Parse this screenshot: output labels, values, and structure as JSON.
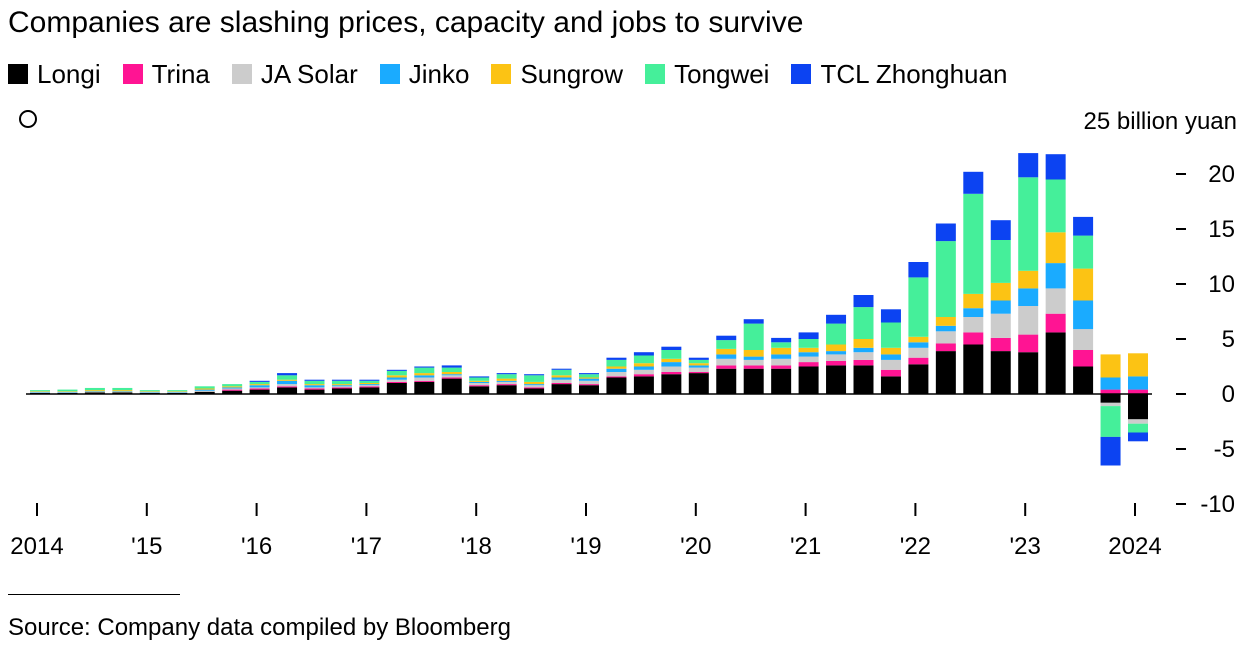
{
  "title": "Companies are slashing prices, capacity and jobs to survive",
  "legend": [
    {
      "name": "Longi",
      "color": "#000000"
    },
    {
      "name": "Trina",
      "color": "#ff1493"
    },
    {
      "name": "JA Solar",
      "color": "#cccccc"
    },
    {
      "name": "Jinko",
      "color": "#1aabff"
    },
    {
      "name": "Sungrow",
      "color": "#fcc314"
    },
    {
      "name": "Tongwei",
      "color": "#45ef9a"
    },
    {
      "name": "TCL Zhonghuan",
      "color": "#0c43f2"
    }
  ],
  "source": "Source: Company data compiled by Bloomberg",
  "chart_data": {
    "type": "bar",
    "stacked": true,
    "title": "Companies are slashing prices, capacity and jobs to survive",
    "ylabel": "",
    "unit_label": "25 billion yuan",
    "ylim": [
      -10,
      25
    ],
    "y_ticks": [
      20,
      15,
      10,
      5,
      0,
      -5,
      -10
    ],
    "x_ticks": [
      "2014",
      "'15",
      "'16",
      "'17",
      "'18",
      "'19",
      "'20",
      "'21",
      "'22",
      "'23",
      "2024"
    ],
    "x_tick_quarter_index": [
      0,
      4,
      8,
      12,
      16,
      20,
      24,
      28,
      32,
      36,
      40
    ],
    "categories": [
      "2014 Q1",
      "2014 Q2",
      "2014 Q3",
      "2014 Q4",
      "2015 Q1",
      "2015 Q2",
      "2015 Q3",
      "2015 Q4",
      "2016 Q1",
      "2016 Q2",
      "2016 Q3",
      "2016 Q4",
      "2017 Q1",
      "2017 Q2",
      "2017 Q3",
      "2017 Q4",
      "2018 Q1",
      "2018 Q2",
      "2018 Q3",
      "2018 Q4",
      "2019 Q1",
      "2019 Q2",
      "2019 Q3",
      "2019 Q4",
      "2020 Q1",
      "2020 Q2",
      "2020 Q3",
      "2020 Q4",
      "2021 Q1",
      "2021 Q2",
      "2021 Q3",
      "2021 Q4",
      "2022 Q1",
      "2022 Q2",
      "2022 Q3",
      "2022 Q4",
      "2023 Q1",
      "2023 Q2",
      "2023 Q3",
      "2023 Q4",
      "2024 Q1"
    ],
    "grid": false,
    "legend_position": "top",
    "series": [
      {
        "name": "Longi",
        "color": "#000000",
        "values": [
          0.1,
          0.1,
          0.15,
          0.15,
          0.1,
          0.1,
          0.2,
          0.3,
          0.4,
          0.6,
          0.4,
          0.5,
          0.6,
          1.0,
          1.1,
          1.4,
          0.7,
          0.8,
          0.5,
          0.9,
          0.8,
          1.5,
          1.6,
          1.8,
          1.9,
          2.3,
          2.3,
          2.3,
          2.5,
          2.6,
          2.6,
          1.6,
          2.7,
          3.9,
          4.5,
          3.9,
          3.8,
          5.6,
          2.5,
          -0.8,
          -2.3
        ]
      },
      {
        "name": "Trina",
        "color": "#ff1493",
        "values": [
          0.0,
          0.0,
          0.0,
          0.0,
          0.0,
          0.0,
          0.0,
          0.1,
          0.1,
          0.1,
          0.1,
          0.1,
          0.1,
          0.1,
          0.1,
          0.1,
          0.1,
          0.1,
          0.1,
          0.1,
          0.1,
          0.1,
          0.2,
          0.2,
          0.1,
          0.3,
          0.3,
          0.3,
          0.4,
          0.4,
          0.5,
          0.6,
          0.6,
          0.7,
          1.1,
          1.2,
          1.6,
          1.7,
          1.5,
          0.4,
          0.4
        ]
      },
      {
        "name": "JA Solar",
        "color": "#cccccc",
        "values": [
          0.05,
          0.05,
          0.05,
          0.05,
          0.05,
          0.05,
          0.1,
          0.1,
          0.1,
          0.2,
          0.1,
          0.1,
          0.1,
          0.2,
          0.3,
          0.2,
          0.2,
          0.2,
          0.2,
          0.3,
          0.3,
          0.4,
          0.4,
          0.5,
          0.4,
          0.6,
          0.5,
          0.6,
          0.5,
          0.6,
          0.7,
          0.9,
          0.9,
          1.1,
          1.4,
          2.2,
          2.6,
          2.3,
          1.9,
          -0.3,
          -0.4
        ]
      },
      {
        "name": "Jinko",
        "color": "#1aabff",
        "values": [
          0.05,
          0.05,
          0.05,
          0.05,
          0.05,
          0.05,
          0.1,
          0.1,
          0.2,
          0.3,
          0.2,
          0.1,
          0.1,
          0.2,
          0.2,
          0.1,
          0.1,
          0.1,
          0.1,
          0.2,
          0.2,
          0.3,
          0.3,
          0.4,
          0.2,
          0.4,
          0.3,
          0.4,
          0.4,
          0.3,
          0.4,
          0.5,
          0.5,
          0.5,
          0.8,
          1.2,
          1.6,
          2.3,
          2.6,
          1.1,
          1.2
        ]
      },
      {
        "name": "Sungrow",
        "color": "#fcc314",
        "values": [
          0.05,
          0.05,
          0.1,
          0.1,
          0.05,
          0.05,
          0.1,
          0.1,
          0.1,
          0.1,
          0.1,
          0.1,
          0.1,
          0.2,
          0.2,
          0.2,
          0.1,
          0.2,
          0.2,
          0.2,
          0.1,
          0.2,
          0.3,
          0.3,
          0.2,
          0.5,
          0.6,
          0.6,
          0.4,
          0.6,
          0.8,
          0.6,
          0.5,
          0.8,
          1.3,
          1.6,
          1.6,
          2.8,
          2.9,
          2.1,
          2.1
        ]
      },
      {
        "name": "Tongwei",
        "color": "#45ef9a",
        "values": [
          0.1,
          0.15,
          0.2,
          0.2,
          0.1,
          0.1,
          0.2,
          0.2,
          0.2,
          0.4,
          0.3,
          0.3,
          0.2,
          0.4,
          0.5,
          0.4,
          0.3,
          0.4,
          0.6,
          0.5,
          0.3,
          0.6,
          0.7,
          0.8,
          0.3,
          0.8,
          2.4,
          0.5,
          0.8,
          1.9,
          2.9,
          2.3,
          5.4,
          6.9,
          9.1,
          3.9,
          8.5,
          4.8,
          3.0,
          -2.8,
          -0.8
        ]
      },
      {
        "name": "TCL Zhonghuan",
        "color": "#0c43f2",
        "values": [
          0.0,
          0.0,
          0.0,
          0.0,
          0.0,
          0.0,
          0.0,
          0.0,
          0.1,
          0.2,
          0.1,
          0.1,
          0.1,
          0.1,
          0.1,
          0.2,
          0.1,
          0.1,
          0.1,
          0.1,
          0.1,
          0.2,
          0.3,
          0.3,
          0.2,
          0.4,
          0.4,
          0.4,
          0.6,
          0.8,
          1.1,
          1.2,
          1.4,
          1.6,
          2.0,
          1.8,
          2.2,
          2.3,
          1.7,
          -2.6,
          -0.8
        ]
      }
    ]
  }
}
